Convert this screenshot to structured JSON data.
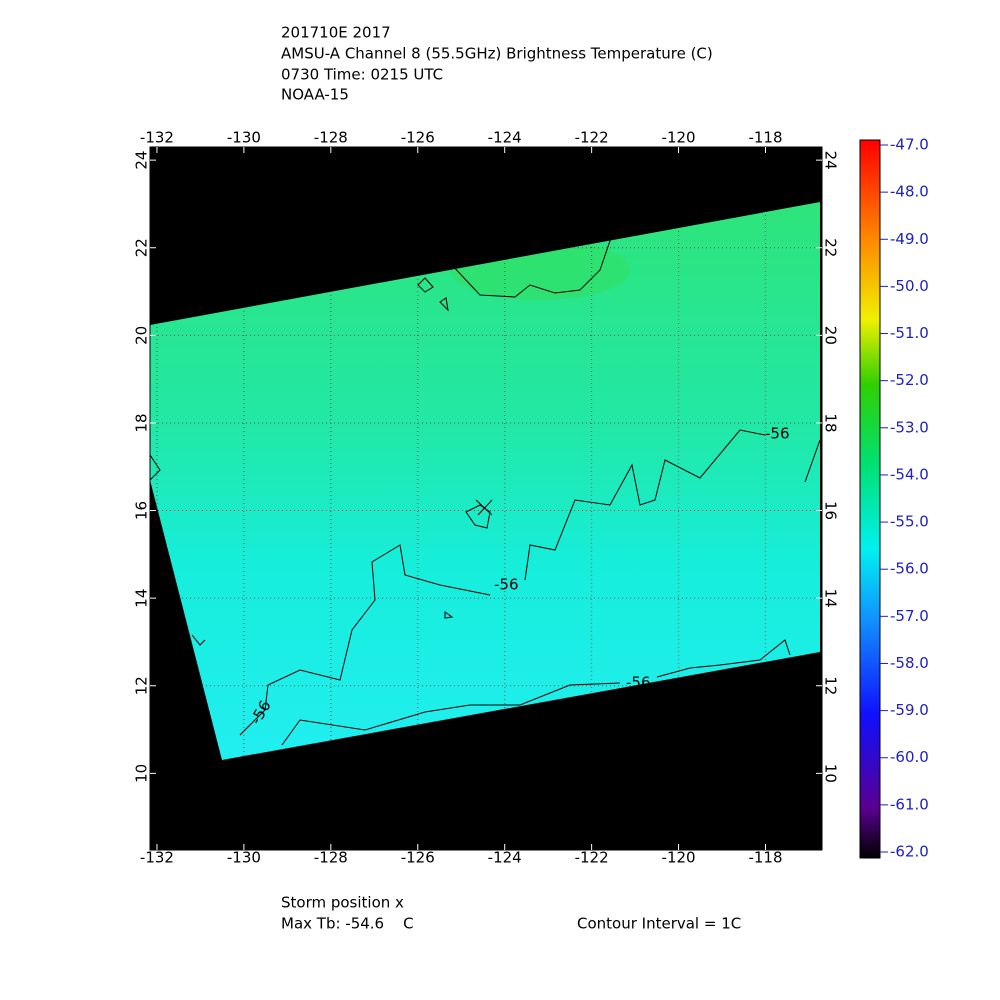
{
  "header": {
    "lines": [
      "201710E 2017",
      "AMSU-A Channel 8 (55.5GHz) Brightness Temperature (C)",
      "0730 Time: 0215 UTC",
      "NOAA-15"
    ]
  },
  "map": {
    "lon_range": [
      -132.16,
      -116.7
    ],
    "lat_range": [
      8.25,
      24.3
    ],
    "lon_ticks": [
      -132,
      -130,
      -128,
      -126,
      -124,
      -122,
      -120,
      -118
    ],
    "lat_ticks": [
      10,
      12,
      14,
      16,
      18,
      20,
      22,
      24
    ],
    "contour_labels": [
      "-56",
      "-56",
      "-56",
      "-56"
    ]
  },
  "colorbar": {
    "range": [
      -62,
      -47
    ],
    "ticks": [
      {
        "value": -47,
        "label": "-47.0"
      },
      {
        "value": -48,
        "label": "-48.0"
      },
      {
        "value": -49,
        "label": "-49.0"
      },
      {
        "value": -50,
        "label": "-50.0"
      },
      {
        "value": -51,
        "label": "-51.0"
      },
      {
        "value": -52,
        "label": "-52.0"
      },
      {
        "value": -53,
        "label": "-53.0"
      },
      {
        "value": -54,
        "label": "-54.0"
      },
      {
        "value": -55,
        "label": "-55.0"
      },
      {
        "value": -56,
        "label": "-56.0"
      },
      {
        "value": -57,
        "label": "-57.0"
      },
      {
        "value": -58,
        "label": "-58.0"
      },
      {
        "value": -59,
        "label": "-59.0"
      },
      {
        "value": -60,
        "label": "-60.0"
      },
      {
        "value": -61,
        "label": "-61.0"
      },
      {
        "value": -62,
        "label": "-62.0"
      }
    ]
  },
  "footer": {
    "storm": "Storm position x",
    "max_tb": "Max Tb: -54.6    C",
    "interval": "Contour Interval = 1C"
  }
}
